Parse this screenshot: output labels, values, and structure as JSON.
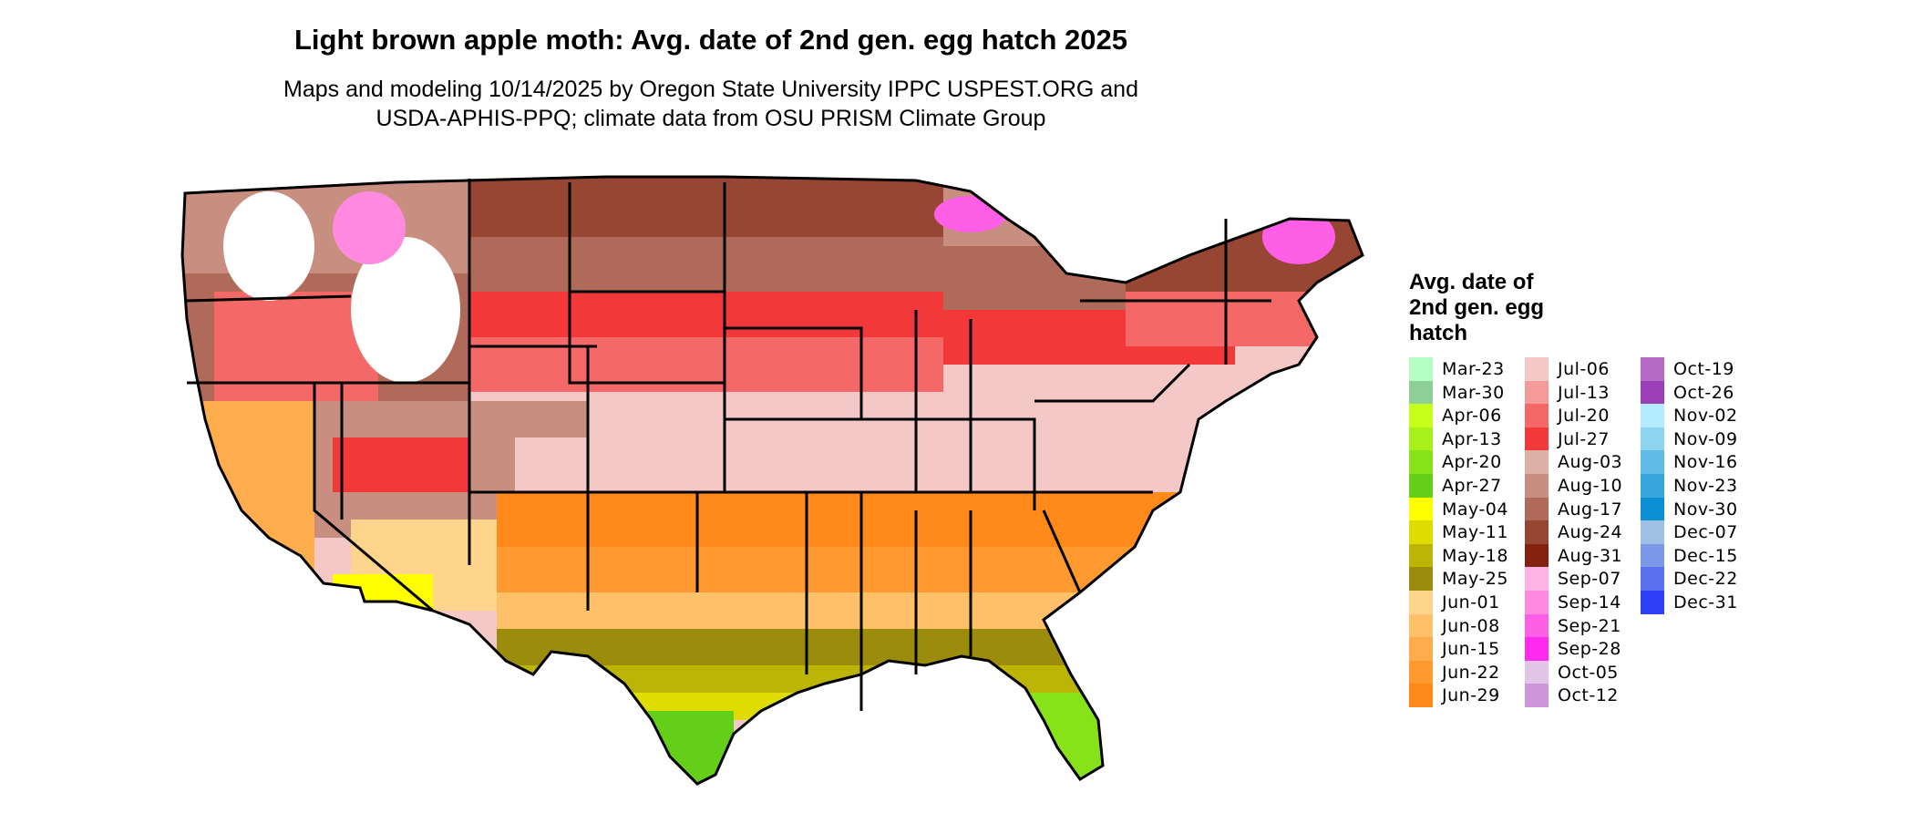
{
  "title": "Light brown apple moth: Avg. date of 2nd gen. egg hatch 2025",
  "subtitle_line1": "Maps and modeling 10/14/2025 by Oregon State University IPPC USPEST.ORG and",
  "subtitle_line2": "USDA-APHIS-PPQ; climate data from OSU PRISM Climate Group",
  "legend": {
    "title_lines": [
      "Avg. date of",
      "2nd gen. egg",
      "hatch"
    ],
    "items": [
      {
        "label": "Mar-23",
        "color": "#b3ffc4"
      },
      {
        "label": "Mar-30",
        "color": "#8ecf98"
      },
      {
        "label": "Apr-06",
        "color": "#c6ff1a"
      },
      {
        "label": "Apr-13",
        "color": "#a8f01a"
      },
      {
        "label": "Apr-20",
        "color": "#88e21a"
      },
      {
        "label": "Apr-27",
        "color": "#63cf18"
      },
      {
        "label": "May-04",
        "color": "#ffff00"
      },
      {
        "label": "May-11",
        "color": "#dedc00"
      },
      {
        "label": "May-18",
        "color": "#bdb505"
      },
      {
        "label": "May-25",
        "color": "#9c8c0b"
      },
      {
        "label": "Jun-01",
        "color": "#ffd48c"
      },
      {
        "label": "Jun-08",
        "color": "#ffc06a"
      },
      {
        "label": "Jun-15",
        "color": "#ffac4c"
      },
      {
        "label": "Jun-22",
        "color": "#ff9a30"
      },
      {
        "label": "Jun-29",
        "color": "#ff8a1a"
      },
      {
        "label": "Jul-06",
        "color": "#f5c8c8"
      },
      {
        "label": "Jul-13",
        "color": "#f49a9a"
      },
      {
        "label": "Jul-20",
        "color": "#f46868"
      },
      {
        "label": "Jul-27",
        "color": "#f23838"
      },
      {
        "label": "Aug-03",
        "color": "#dcb0a6"
      },
      {
        "label": "Aug-10",
        "color": "#c88e80"
      },
      {
        "label": "Aug-17",
        "color": "#b06a5a"
      },
      {
        "label": "Aug-24",
        "color": "#984634"
      },
      {
        "label": "Aug-31",
        "color": "#842210"
      },
      {
        "label": "Sep-07",
        "color": "#ffb2e4"
      },
      {
        "label": "Sep-14",
        "color": "#ff8ae0"
      },
      {
        "label": "Sep-21",
        "color": "#ff5ee6"
      },
      {
        "label": "Sep-28",
        "color": "#ff2af0"
      },
      {
        "label": "Oct-05",
        "color": "#e2c4e8"
      },
      {
        "label": "Oct-12",
        "color": "#cc96d8"
      },
      {
        "label": "Oct-19",
        "color": "#b46ac6"
      },
      {
        "label": "Oct-26",
        "color": "#9c40b8"
      },
      {
        "label": "Nov-02",
        "color": "#b4ecff"
      },
      {
        "label": "Nov-09",
        "color": "#8cd4f0"
      },
      {
        "label": "Nov-16",
        "color": "#60bce6"
      },
      {
        "label": "Nov-23",
        "color": "#36a6dc"
      },
      {
        "label": "Nov-30",
        "color": "#0c8ed2"
      },
      {
        "label": "Dec-07",
        "color": "#a0c0e4"
      },
      {
        "label": "Dec-15",
        "color": "#7c98e8"
      },
      {
        "label": "Dec-22",
        "color": "#5a70ee"
      },
      {
        "label": "Dec-31",
        "color": "#3040f8"
      }
    ]
  }
}
